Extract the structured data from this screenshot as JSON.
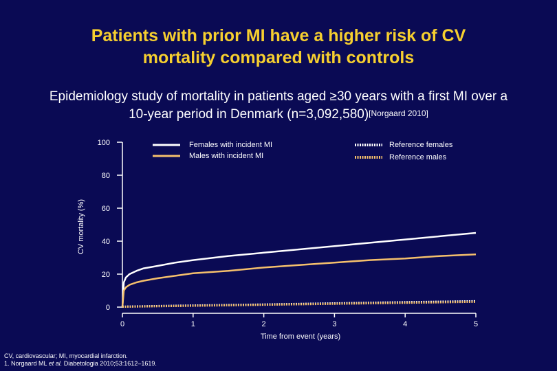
{
  "slide": {
    "title_line1": "Patients with prior MI have a higher risk of CV",
    "title_line2": "mortality compared with controls",
    "subtitle_line1": "Epidemiology study of mortality in patients aged ≥30 years with a first MI over a",
    "subtitle_line2": "10-year period in Denmark (n=3,092,580)",
    "subtitle_ref": "[Norgaard 2010]",
    "footnote_line1": "CV, cardiovascular; MI, myocardial infarction.",
    "footnote_line2_pre": "1. Norgaard ML ",
    "footnote_line2_etal": "et al.",
    "footnote_line2_post": " Diabetologia 2010;53:1612–1619."
  },
  "colors": {
    "background": "#0a0a54",
    "title": "#f6cf2f",
    "females": "#ffffff",
    "males": "#f5c06c",
    "axis": "#ffffff"
  },
  "chart_data": {
    "type": "line",
    "title": "",
    "xlabel": "Time from event (years)",
    "ylabel": "CV mortality (%)",
    "xlim": [
      0,
      5
    ],
    "ylim": [
      0,
      100
    ],
    "xticks": [
      0,
      1,
      2,
      3,
      4,
      5
    ],
    "yticks": [
      0,
      20,
      40,
      60,
      80,
      100
    ],
    "legend_position": "top",
    "series": [
      {
        "name": "Females with incident MI",
        "style": "solid",
        "color": "#ffffff",
        "x": [
          0,
          0.02,
          0.05,
          0.1,
          0.2,
          0.3,
          0.5,
          0.75,
          1,
          1.5,
          2,
          2.5,
          3,
          3.5,
          4,
          4.5,
          5
        ],
        "y": [
          0,
          15,
          18,
          20,
          22,
          23.5,
          25,
          27,
          28.5,
          31,
          33,
          35,
          37,
          39,
          41,
          43,
          45
        ]
      },
      {
        "name": "Males with incident MI",
        "style": "solid",
        "color": "#f5c06c",
        "x": [
          0,
          0.02,
          0.05,
          0.1,
          0.2,
          0.3,
          0.5,
          0.75,
          1,
          1.5,
          2,
          2.5,
          3,
          3.5,
          4,
          4.5,
          5
        ],
        "y": [
          0,
          10,
          12,
          13.5,
          15,
          16,
          17.5,
          19,
          20.5,
          22,
          24,
          25.5,
          27,
          28.5,
          29.5,
          31,
          32
        ]
      },
      {
        "name": "Reference females",
        "style": "dashed",
        "color": "#ffffff",
        "x": [
          0,
          1,
          2,
          3,
          4,
          5
        ],
        "y": [
          0.3,
          1.0,
          1.6,
          2.3,
          3.0,
          3.6
        ]
      },
      {
        "name": "Reference males",
        "style": "dashed",
        "color": "#f5c06c",
        "x": [
          0,
          1,
          2,
          3,
          4,
          5
        ],
        "y": [
          0.2,
          0.8,
          1.4,
          2.0,
          2.6,
          3.2
        ]
      }
    ]
  }
}
